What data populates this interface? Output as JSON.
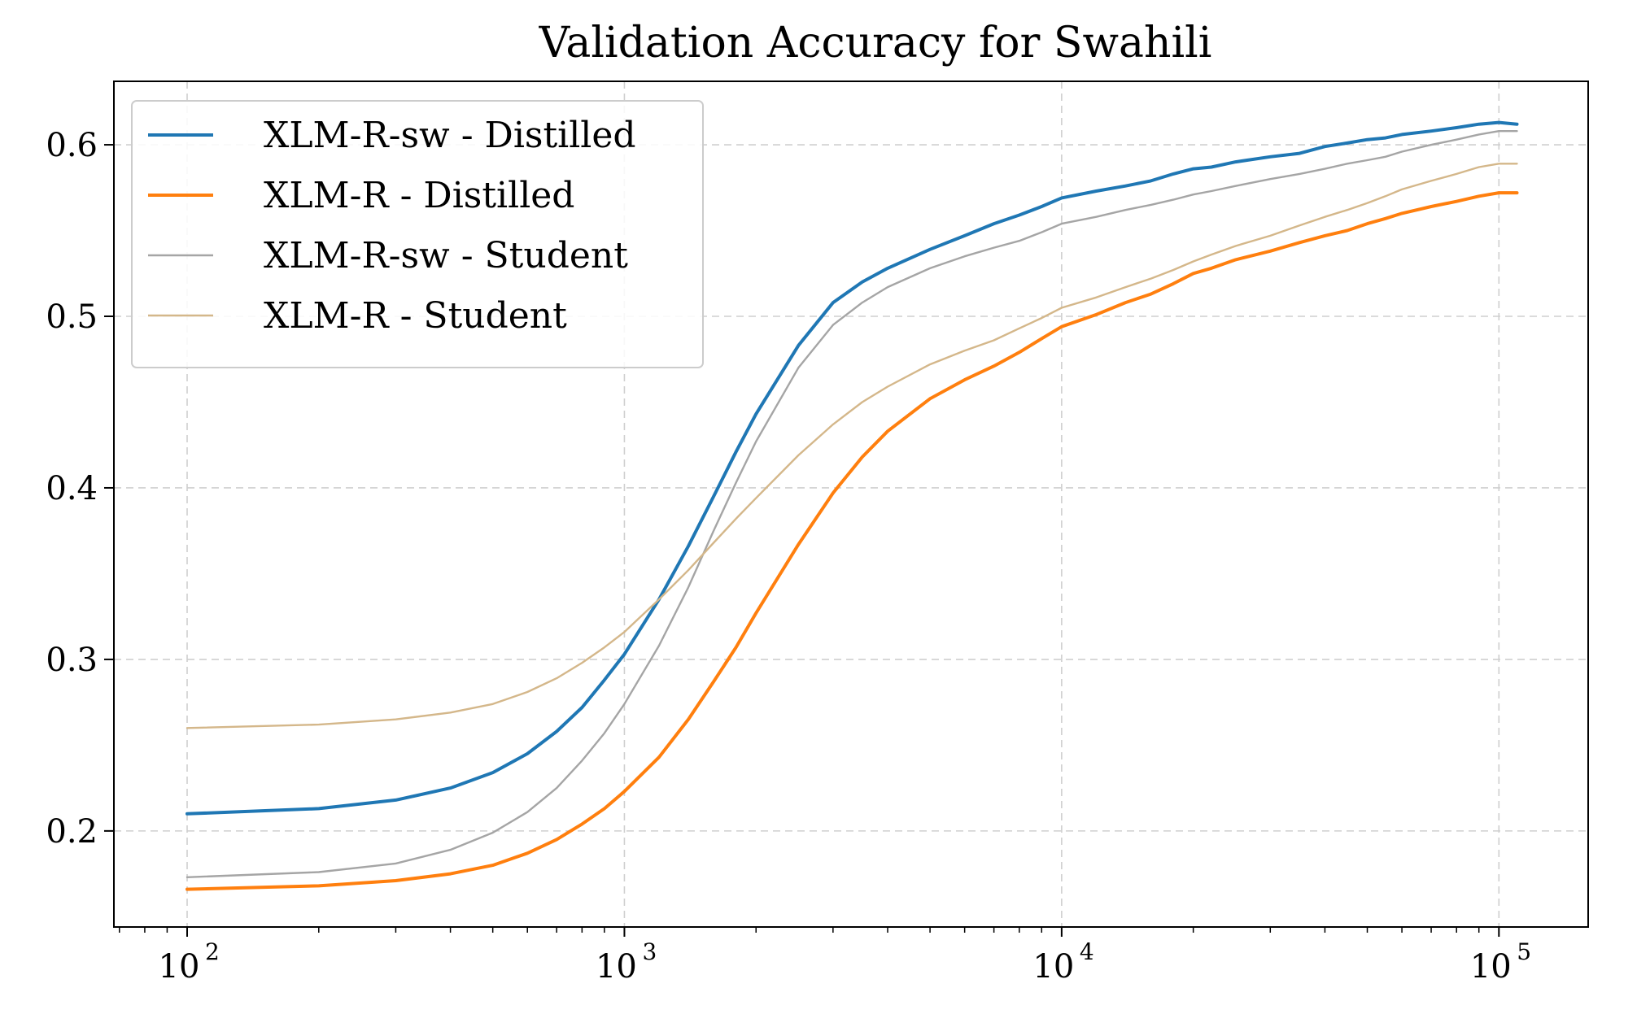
{
  "chart_data": {
    "type": "line",
    "title": "Validation Accuracy for Swahili",
    "xlabel": "",
    "ylabel": "",
    "xscale": "log",
    "xlim": [
      68,
      160000
    ],
    "ylim": [
      0.144,
      0.637
    ],
    "grid": true,
    "legend_position": "upper-left",
    "yticks": [
      {
        "value": 0.2,
        "label": "0.2"
      },
      {
        "value": 0.3,
        "label": "0.3"
      },
      {
        "value": 0.4,
        "label": "0.4"
      },
      {
        "value": 0.5,
        "label": "0.5"
      },
      {
        "value": 0.6,
        "label": "0.6"
      }
    ],
    "xticks": [
      {
        "value": 100,
        "base": "10",
        "exp": "2"
      },
      {
        "value": 1000,
        "base": "10",
        "exp": "3"
      },
      {
        "value": 10000,
        "base": "10",
        "exp": "4"
      },
      {
        "value": 100000,
        "base": "10",
        "exp": "5"
      }
    ],
    "series": [
      {
        "name": "XLM-R-sw - Distilled",
        "color": "#1f77b4",
        "width": "thick",
        "x": [
          100,
          200,
          300,
          400,
          500,
          600,
          700,
          800,
          900,
          1000,
          1200,
          1400,
          1600,
          1800,
          2000,
          2500,
          3000,
          3500,
          4000,
          5000,
          6000,
          7000,
          8000,
          9000,
          10000,
          12000,
          14000,
          16000,
          18000,
          20000,
          22000,
          25000,
          30000,
          35000,
          40000,
          45000,
          50000,
          55000,
          60000,
          70000,
          80000,
          90000,
          100000,
          110000
        ],
        "y": [
          0.21,
          0.213,
          0.218,
          0.225,
          0.234,
          0.245,
          0.258,
          0.272,
          0.288,
          0.303,
          0.335,
          0.366,
          0.395,
          0.421,
          0.443,
          0.483,
          0.508,
          0.52,
          0.528,
          0.539,
          0.547,
          0.554,
          0.559,
          0.564,
          0.569,
          0.573,
          0.576,
          0.579,
          0.583,
          0.586,
          0.587,
          0.59,
          0.593,
          0.595,
          0.599,
          0.601,
          0.603,
          0.604,
          0.606,
          0.608,
          0.61,
          0.612,
          0.613,
          0.612
        ]
      },
      {
        "name": "XLM-R - Distilled",
        "color": "#ff7f0e",
        "width": "thick",
        "x": [
          100,
          200,
          300,
          400,
          500,
          600,
          700,
          800,
          900,
          1000,
          1200,
          1400,
          1600,
          1800,
          2000,
          2500,
          3000,
          3500,
          4000,
          5000,
          6000,
          7000,
          8000,
          9000,
          10000,
          12000,
          14000,
          16000,
          18000,
          20000,
          22000,
          25000,
          30000,
          35000,
          40000,
          45000,
          50000,
          55000,
          60000,
          70000,
          80000,
          90000,
          100000,
          110000
        ],
        "y": [
          0.166,
          0.168,
          0.171,
          0.175,
          0.18,
          0.187,
          0.195,
          0.204,
          0.213,
          0.223,
          0.243,
          0.265,
          0.287,
          0.307,
          0.327,
          0.367,
          0.397,
          0.418,
          0.433,
          0.452,
          0.463,
          0.471,
          0.479,
          0.487,
          0.494,
          0.501,
          0.508,
          0.513,
          0.519,
          0.525,
          0.528,
          0.533,
          0.538,
          0.543,
          0.547,
          0.55,
          0.554,
          0.557,
          0.56,
          0.564,
          0.567,
          0.57,
          0.572,
          0.572
        ]
      },
      {
        "name": "XLM-R-sw - Student",
        "color": "#a5a5a5",
        "width": "thin",
        "x": [
          100,
          200,
          300,
          400,
          500,
          600,
          700,
          800,
          900,
          1000,
          1200,
          1400,
          1600,
          1800,
          2000,
          2500,
          3000,
          3500,
          4000,
          5000,
          6000,
          7000,
          8000,
          9000,
          10000,
          12000,
          14000,
          16000,
          18000,
          20000,
          22000,
          25000,
          30000,
          35000,
          40000,
          45000,
          50000,
          55000,
          60000,
          70000,
          80000,
          90000,
          100000,
          110000
        ],
        "y": [
          0.173,
          0.176,
          0.181,
          0.189,
          0.199,
          0.211,
          0.225,
          0.241,
          0.257,
          0.274,
          0.308,
          0.342,
          0.375,
          0.403,
          0.427,
          0.47,
          0.495,
          0.508,
          0.517,
          0.528,
          0.535,
          0.54,
          0.544,
          0.549,
          0.554,
          0.558,
          0.562,
          0.565,
          0.568,
          0.571,
          0.573,
          0.576,
          0.58,
          0.583,
          0.586,
          0.589,
          0.591,
          0.593,
          0.596,
          0.6,
          0.603,
          0.606,
          0.608,
          0.608
        ]
      },
      {
        "name": "XLM-R - Student",
        "color": "#d4b78a",
        "width": "thin",
        "x": [
          100,
          200,
          300,
          400,
          500,
          600,
          700,
          800,
          900,
          1000,
          1200,
          1400,
          1600,
          1800,
          2000,
          2500,
          3000,
          3500,
          4000,
          5000,
          6000,
          7000,
          8000,
          9000,
          10000,
          12000,
          14000,
          16000,
          18000,
          20000,
          22000,
          25000,
          30000,
          35000,
          40000,
          45000,
          50000,
          55000,
          60000,
          70000,
          80000,
          90000,
          100000,
          110000
        ],
        "y": [
          0.26,
          0.262,
          0.265,
          0.269,
          0.274,
          0.281,
          0.289,
          0.298,
          0.307,
          0.316,
          0.335,
          0.352,
          0.368,
          0.382,
          0.394,
          0.419,
          0.437,
          0.45,
          0.459,
          0.472,
          0.48,
          0.486,
          0.493,
          0.499,
          0.505,
          0.511,
          0.517,
          0.522,
          0.527,
          0.532,
          0.536,
          0.541,
          0.547,
          0.553,
          0.558,
          0.562,
          0.566,
          0.57,
          0.574,
          0.579,
          0.583,
          0.587,
          0.589,
          0.589
        ]
      }
    ]
  }
}
